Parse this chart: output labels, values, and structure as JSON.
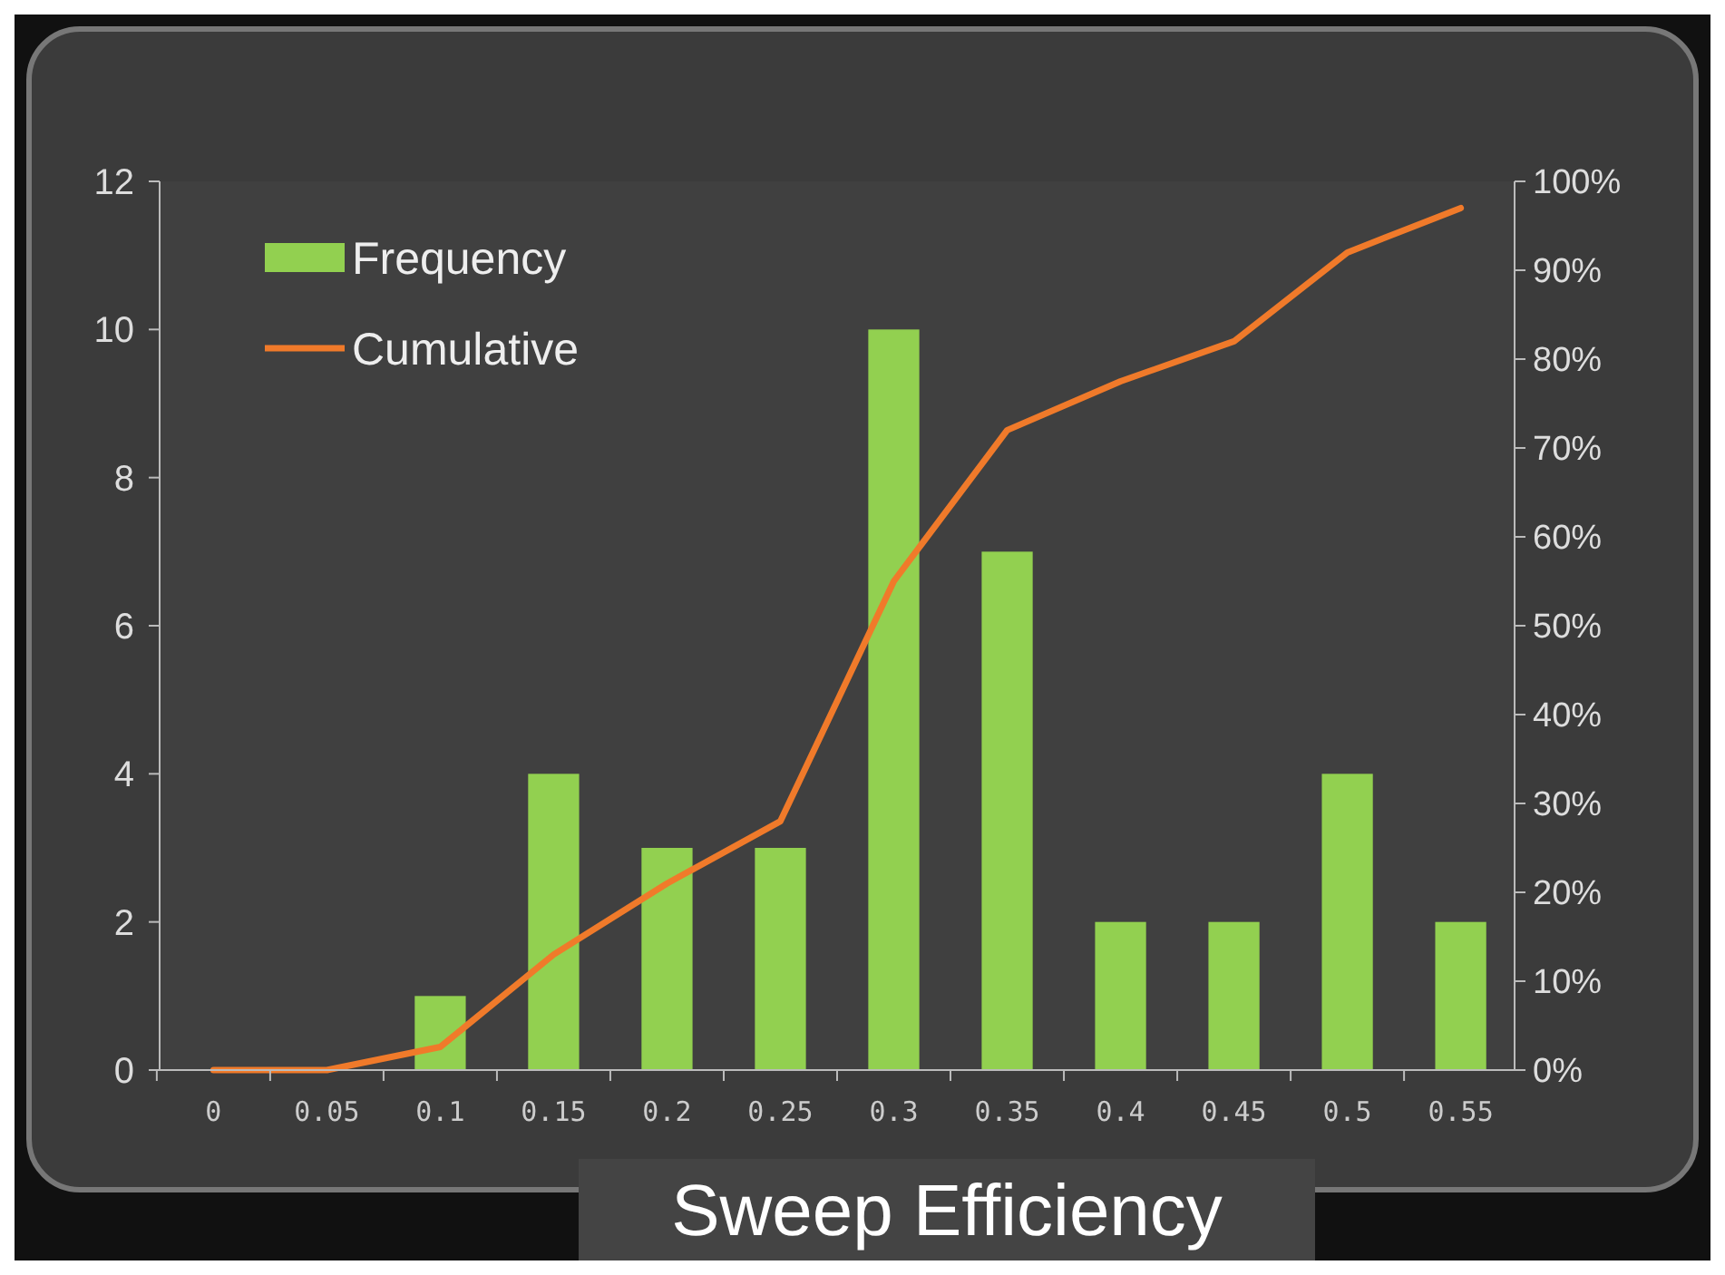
{
  "chart_data": {
    "type": "bar",
    "xlabel": "Sweep Efficiency",
    "categories": [
      "0",
      "0.05",
      "0.1",
      "0.15",
      "0.2",
      "0.25",
      "0.3",
      "0.35",
      "0.4",
      "0.45",
      "0.5",
      "0.55"
    ],
    "series": [
      {
        "name": "Frequency",
        "color": "#92d050",
        "values": [
          0,
          0,
          1,
          4,
          3,
          3,
          10,
          7,
          2,
          2,
          4,
          2
        ]
      },
      {
        "name": "Cumulative",
        "type": "line",
        "axis": "y2",
        "color": "#f07a2a",
        "values": [
          0,
          0,
          2.6,
          13,
          21,
          28,
          55,
          72,
          77.5,
          82,
          92,
          97
        ]
      }
    ],
    "ylim": [
      0,
      12
    ],
    "yticks": [
      0,
      2,
      4,
      6,
      8,
      10,
      12
    ],
    "y2lim": [
      0,
      100
    ],
    "y2ticks": [
      {
        "value": 0,
        "label": "0%"
      },
      {
        "value": 10,
        "label": "10%"
      },
      {
        "value": 20,
        "label": "20%"
      },
      {
        "value": 30,
        "label": "30%"
      },
      {
        "value": 40,
        "label": "40%"
      },
      {
        "value": 50,
        "label": "50%"
      },
      {
        "value": 60,
        "label": "60%"
      },
      {
        "value": 70,
        "label": "70%"
      },
      {
        "value": 80,
        "label": "80%"
      },
      {
        "value": 90,
        "label": "90%"
      },
      {
        "value": 100,
        "label": "100%"
      }
    ],
    "grid": false,
    "legend": "top left",
    "marker": "none",
    "line_style": "solid"
  }
}
